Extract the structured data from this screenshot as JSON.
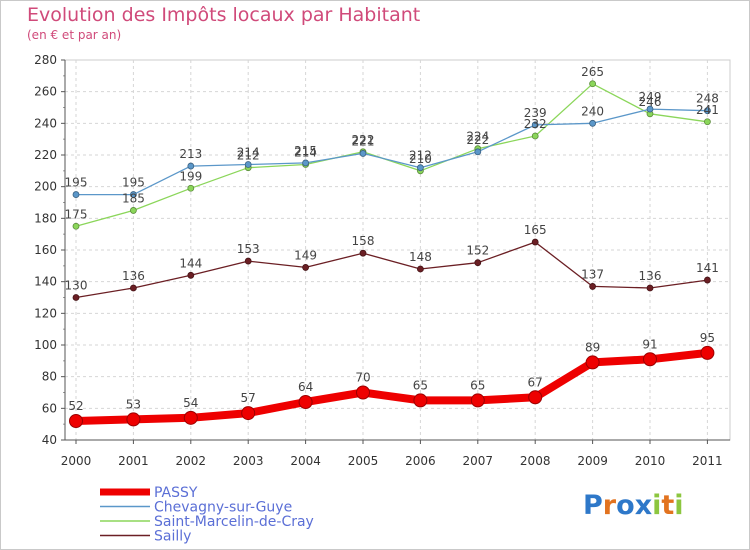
{
  "chart_data": {
    "type": "line",
    "title": "Evolution des Impôts locaux par Habitant",
    "subtitle": "(en € et par an)",
    "xlabel": "",
    "ylabel": "",
    "ylim": [
      40,
      280
    ],
    "yticks": [
      "40",
      "60",
      "80",
      "100",
      "120",
      "140",
      "160",
      "180",
      "200",
      "220",
      "240",
      "260",
      "280"
    ],
    "categories": [
      "2000",
      "2001",
      "2002",
      "2003",
      "2004",
      "2005",
      "2006",
      "2007",
      "2008",
      "2009",
      "2010",
      "2011"
    ],
    "grid": true,
    "legend_position": "bottom-left",
    "series": [
      {
        "name": "Sailly",
        "color": "#6b1f24",
        "values": [
          130,
          136,
          144,
          153,
          149,
          158,
          148,
          152,
          165,
          137,
          136,
          141
        ]
      },
      {
        "name": "Saint-Marcelin-de-Cray",
        "color": "#8bd65a",
        "values": [
          175,
          185,
          199,
          212,
          214,
          222,
          210,
          224,
          232,
          265,
          246,
          241
        ]
      },
      {
        "name": "Chevagny-sur-Guye",
        "color": "#5b97c9",
        "values": [
          195,
          195,
          213,
          214,
          215,
          221,
          212,
          222,
          239,
          240,
          249,
          248
        ]
      },
      {
        "name": "PASSY",
        "color": "#ee0000",
        "values": [
          52,
          53,
          54,
          57,
          64,
          70,
          65,
          65,
          67,
          89,
          91,
          95
        ]
      }
    ],
    "legend_order": [
      "PASSY",
      "Chevagny-sur-Guye",
      "Saint-Marcelin-de-Cray",
      "Sailly"
    ]
  },
  "logo": {
    "text": "Proxiti",
    "letters": [
      "P",
      "r",
      "o",
      "x",
      "i",
      "t",
      "i"
    ],
    "colors": [
      "#2e78c9",
      "#e2731f",
      "#2e78c9",
      "#2e78c9",
      "#8cc63f",
      "#e2731f",
      "#8cc63f"
    ]
  }
}
